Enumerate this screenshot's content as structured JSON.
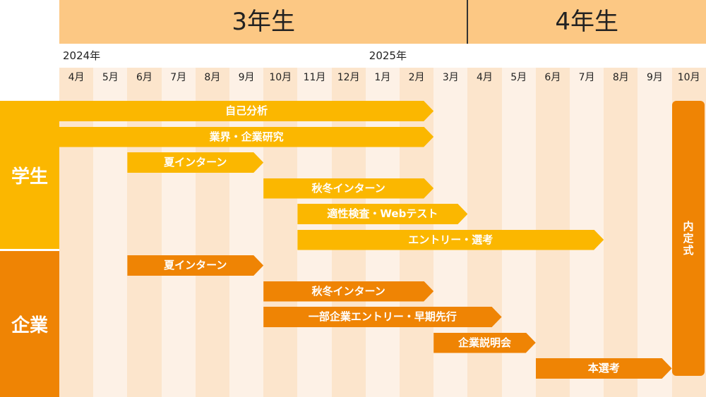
{
  "grades": [
    {
      "label": "3年生",
      "from": 0,
      "to": 12
    },
    {
      "label": "4年生",
      "from": 12,
      "to": 19
    }
  ],
  "years": [
    {
      "label": "2024年",
      "col": 0
    },
    {
      "label": "2025年",
      "col": 9
    }
  ],
  "months": [
    "4月",
    "5月",
    "6月",
    "7月",
    "8月",
    "9月",
    "10月",
    "11月",
    "12月",
    "1月",
    "2月",
    "3月",
    "4月",
    "5月",
    "6月",
    "7月",
    "8月",
    "9月",
    "10月"
  ],
  "sides": {
    "student": "学生",
    "company": "企業"
  },
  "student_bars": [
    {
      "label": "自己分析",
      "start": 0,
      "end": 11
    },
    {
      "label": "業界・企業研究",
      "start": 0,
      "end": 11
    },
    {
      "label": "夏インターン",
      "start": 2,
      "end": 6
    },
    {
      "label": "秋冬インターン",
      "start": 6,
      "end": 11
    },
    {
      "label": "適性検査・Webテスト",
      "start": 7,
      "end": 12
    },
    {
      "label": "エントリー・選考",
      "start": 7,
      "end": 16
    }
  ],
  "company_bars": [
    {
      "label": "夏インターン",
      "start": 2,
      "end": 6
    },
    {
      "label": "秋冬インターン",
      "start": 6,
      "end": 11
    },
    {
      "label": "一部企業エントリー・早期先行",
      "start": 6,
      "end": 13
    },
    {
      "label": "企業説明会",
      "start": 11,
      "end": 14
    },
    {
      "label": "本選考",
      "start": 14,
      "end": 18
    }
  ],
  "naitei": {
    "label": "内定式",
    "col": 18
  },
  "colors": {
    "grade_bg": "#fcc884",
    "col_odd": "#fce5cc",
    "col_even": "#fdf1e6",
    "student": "#fbb700",
    "company": "#ef8404"
  }
}
